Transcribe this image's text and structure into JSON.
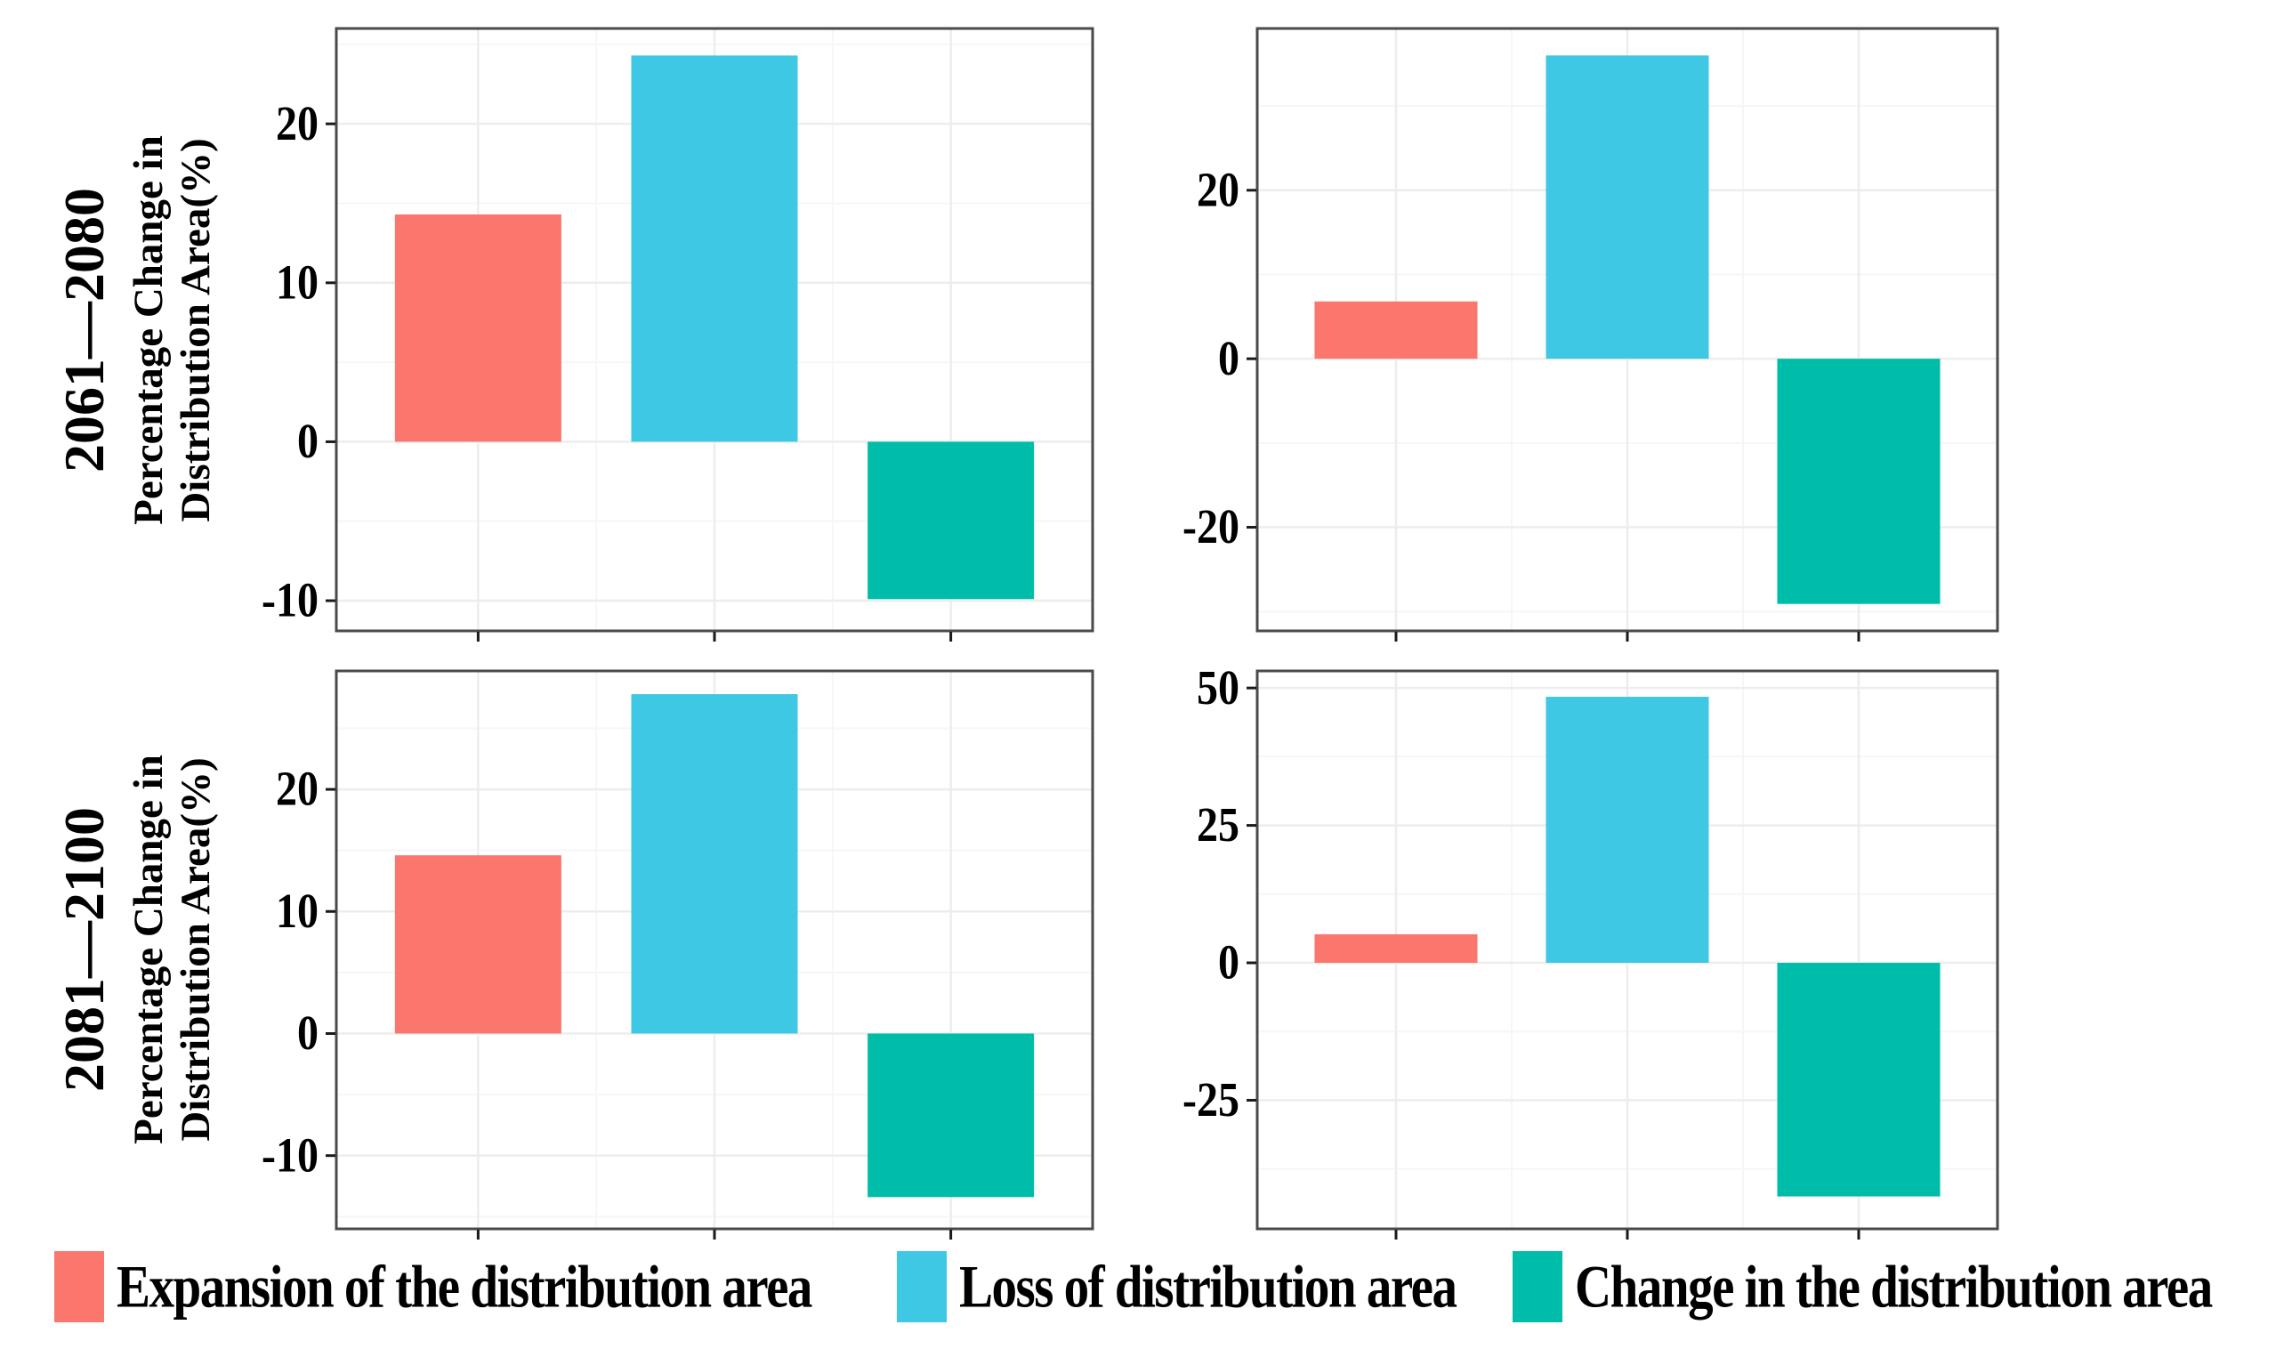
{
  "figure": {
    "y_axis_title_line1": "Percentage Change in",
    "y_axis_title_line2": "Distribution Area(%)",
    "rows": [
      {
        "period": "2061—2080"
      },
      {
        "period": "2081—2100"
      }
    ]
  },
  "colors": {
    "expansion": "#FB766C",
    "loss": "#3FC8E4",
    "change": "#00BDA9",
    "panel_border": "#4a4a4a",
    "tick": "#1a1a1a",
    "grid_major": "#ededed",
    "grid_minor": "#f6f6f6",
    "text": "#000000"
  },
  "legend": {
    "items": [
      {
        "label": "Expansion of the distribution area",
        "color_key": "expansion"
      },
      {
        "label": "Loss of distribution area",
        "color_key": "loss"
      },
      {
        "label": "Change in the distribution area",
        "color_key": "change"
      }
    ]
  },
  "chart_data": [
    {
      "type": "bar",
      "period": "2061—2080",
      "position": "left",
      "categories": [
        "Expansion of the distribution area",
        "Loss of distribution area",
        "Change in the distribution area"
      ],
      "values": [
        14.3,
        24.3,
        -9.9
      ],
      "series_color_keys": [
        "expansion",
        "loss",
        "change"
      ],
      "title": "",
      "xlabel": "",
      "ylabel": "Percentage Change in Distribution Area(%)",
      "yticks": [
        -10,
        0,
        10,
        20
      ],
      "minor_step": 5,
      "ylim": [
        -11.9,
        26.0
      ],
      "grid": true,
      "legend_position": "bottom"
    },
    {
      "type": "bar",
      "period": "2061—2080",
      "position": "right",
      "categories": [
        "Expansion of the distribution area",
        "Loss of distribution area",
        "Change in the distribution area"
      ],
      "values": [
        6.8,
        36.0,
        -29.1
      ],
      "series_color_keys": [
        "expansion",
        "loss",
        "change"
      ],
      "title": "",
      "xlabel": "",
      "ylabel": "",
      "yticks": [
        -20,
        0,
        20
      ],
      "minor_step": 10,
      "ylim": [
        -32.3,
        39.2
      ],
      "grid": true,
      "legend_position": "bottom"
    },
    {
      "type": "bar",
      "period": "2081—2100",
      "position": "left",
      "categories": [
        "Expansion of the distribution area",
        "Loss of distribution area",
        "Change in the distribution area"
      ],
      "values": [
        14.6,
        27.8,
        -13.4
      ],
      "series_color_keys": [
        "expansion",
        "loss",
        "change"
      ],
      "title": "",
      "xlabel": "",
      "ylabel": "Percentage Change in Distribution Area(%)",
      "yticks": [
        -10,
        0,
        10,
        20
      ],
      "minor_step": 5,
      "ylim": [
        -16.0,
        29.7
      ],
      "grid": true,
      "legend_position": "bottom"
    },
    {
      "type": "bar",
      "period": "2081—2100",
      "position": "right",
      "categories": [
        "Expansion of the distribution area",
        "Loss of distribution area",
        "Change in the distribution area"
      ],
      "values": [
        5.2,
        48.4,
        -42.5
      ],
      "series_color_keys": [
        "expansion",
        "loss",
        "change"
      ],
      "title": "",
      "xlabel": "",
      "ylabel": "",
      "yticks": [
        -25,
        0,
        25,
        50
      ],
      "minor_step": 12.5,
      "ylim": [
        -48.4,
        53.1
      ],
      "grid": true,
      "legend_position": "bottom"
    }
  ]
}
